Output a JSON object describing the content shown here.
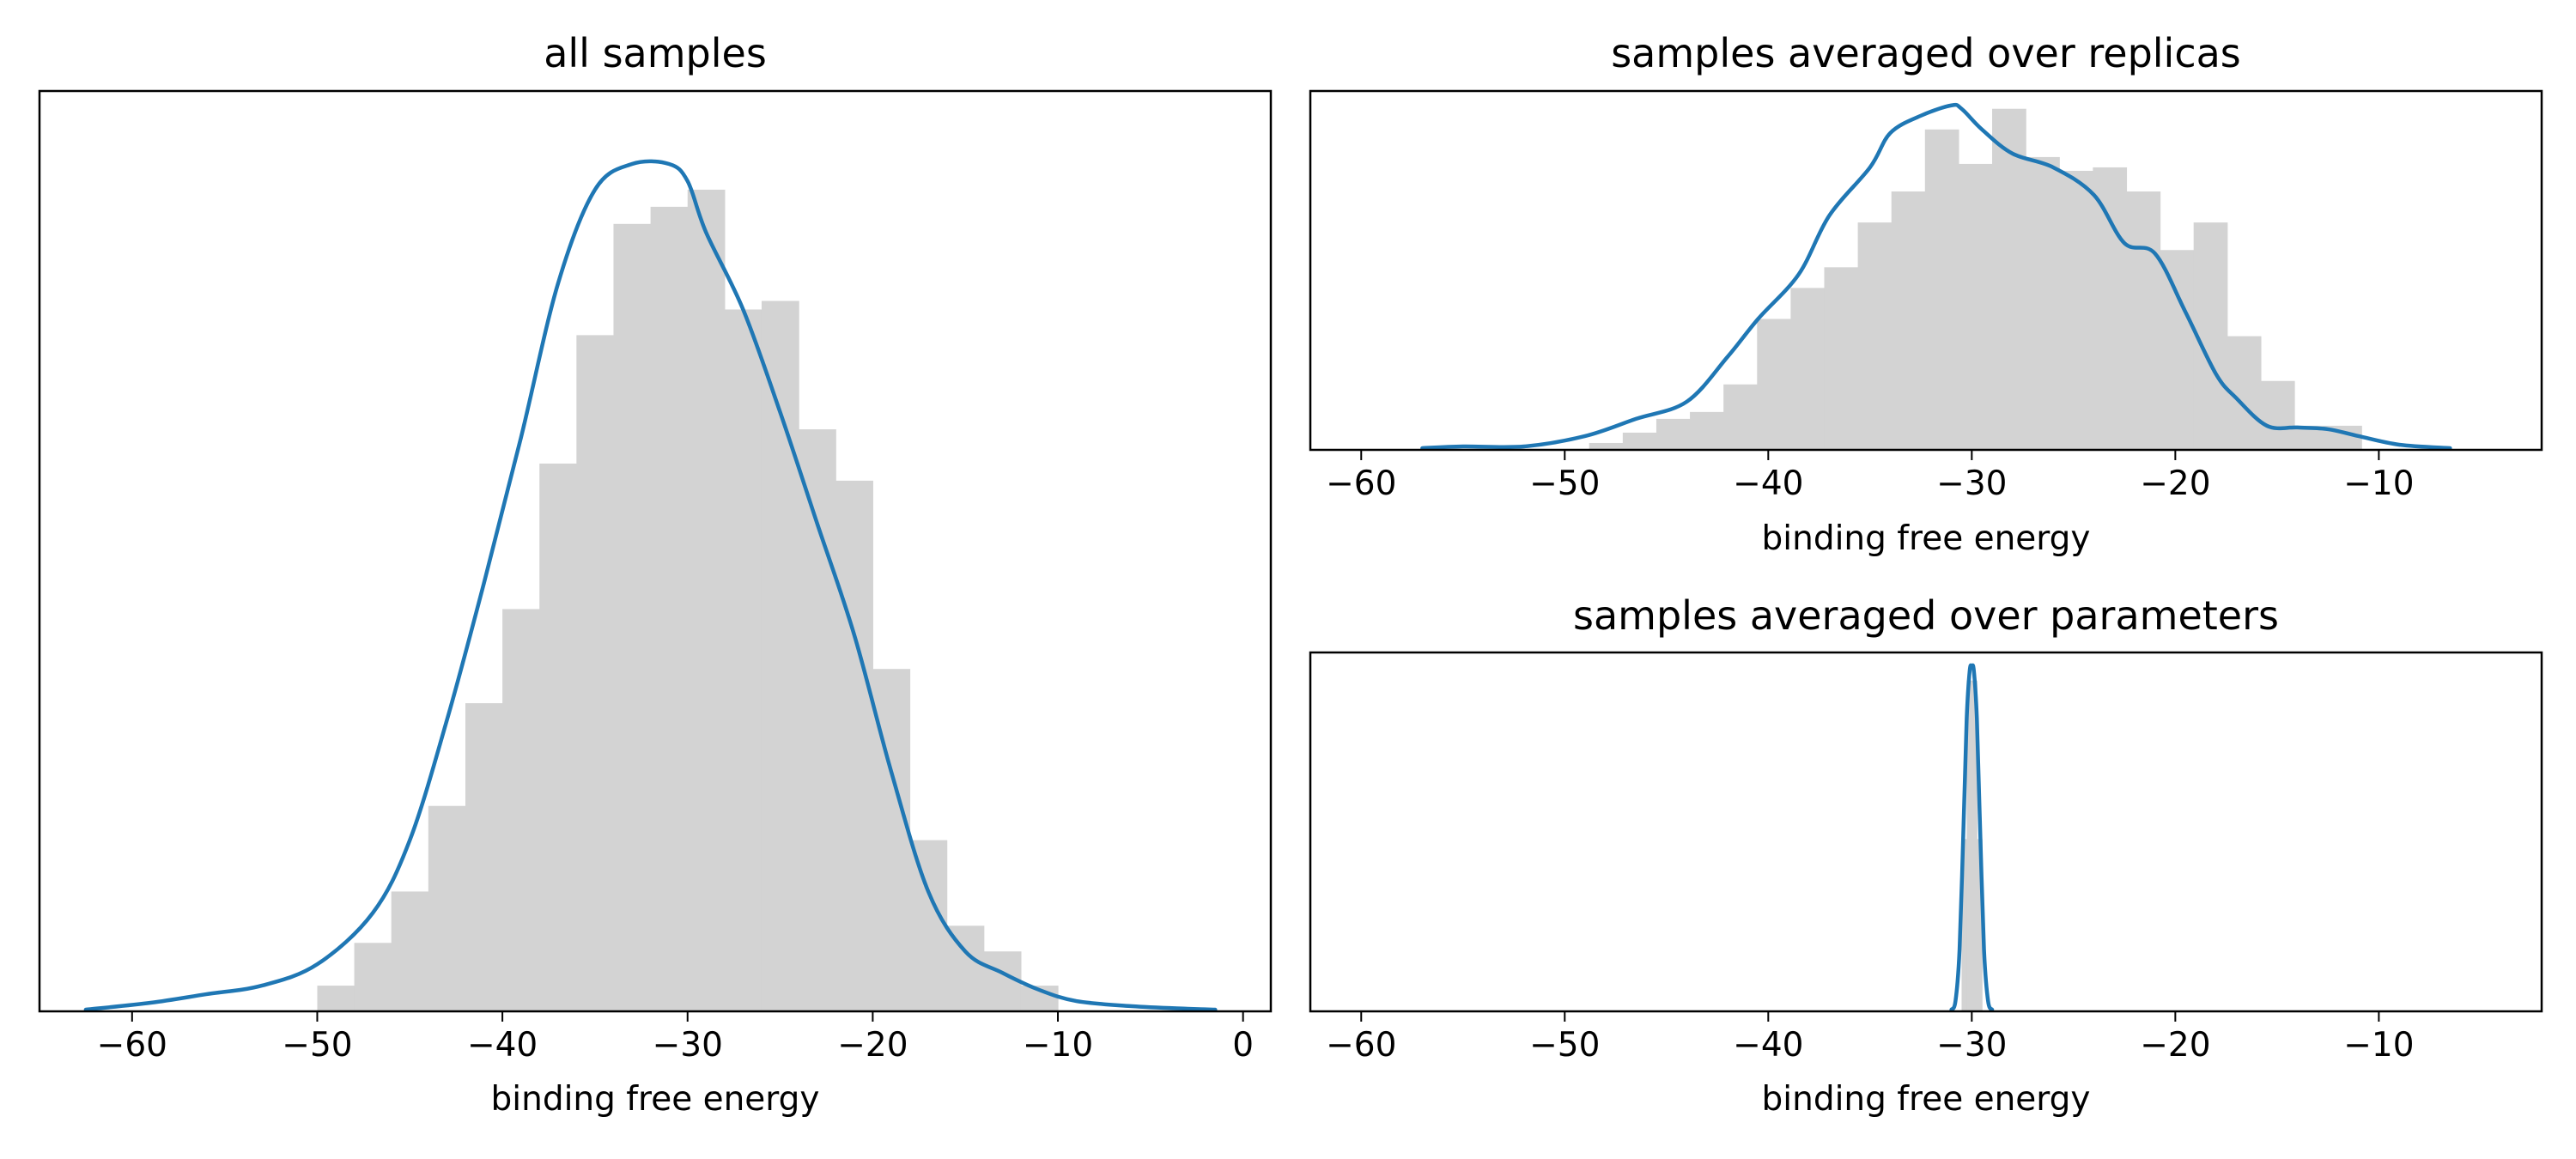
{
  "colors": {
    "hist": "#d3d3d3",
    "kde": "#1f77b4",
    "axis": "#000000"
  },
  "chart_data": [
    {
      "id": "all",
      "type": "histogram+kde",
      "title": "all samples",
      "xlabel": "binding free energy",
      "ylabel": "",
      "xlim": [
        -65,
        1.5
      ],
      "ylim": [
        0,
        1.0
      ],
      "xticks": [
        -60,
        -50,
        -40,
        -30,
        -20,
        -10,
        0
      ],
      "yticks_shown": false,
      "grid": false,
      "histogram": {
        "bin_edges": [
          -50,
          -48,
          -46,
          -44,
          -42,
          -40,
          -38,
          -36,
          -34,
          -32,
          -30,
          -28,
          -26,
          -24,
          -22,
          -20,
          -18,
          -16,
          -14,
          -12,
          -10
        ],
        "heights": [
          0.03,
          0.08,
          0.14,
          0.24,
          0.36,
          0.47,
          0.64,
          0.79,
          0.92,
          0.94,
          0.96,
          0.82,
          0.83,
          0.68,
          0.62,
          0.4,
          0.2,
          0.1,
          0.07,
          0.03
        ]
      },
      "kde": {
        "x": [
          -62.5,
          -59,
          -56,
          -53,
          -50,
          -47,
          -45,
          -43,
          -41,
          -39,
          -37,
          -35,
          -33,
          -31,
          -30,
          -29,
          -27,
          -25,
          -23,
          -21,
          -19,
          -17,
          -15,
          -13,
          -11,
          -9,
          -6,
          -3,
          -1.5
        ],
        "y": [
          0.002,
          0.01,
          0.02,
          0.03,
          0.055,
          0.115,
          0.2,
          0.34,
          0.5,
          0.67,
          0.85,
          0.96,
          0.99,
          0.99,
          0.97,
          0.91,
          0.82,
          0.7,
          0.57,
          0.44,
          0.28,
          0.14,
          0.07,
          0.045,
          0.025,
          0.012,
          0.006,
          0.003,
          0.002
        ]
      }
    },
    {
      "id": "replicas",
      "type": "histogram+kde",
      "title": "samples averaged over replicas",
      "xlabel": "binding free energy",
      "ylabel": "",
      "xlim": [
        -62.5,
        -2
      ],
      "ylim": [
        0,
        1.0
      ],
      "xticks": [
        -60,
        -50,
        -40,
        -30,
        -20,
        -10
      ],
      "yticks_shown": false,
      "grid": false,
      "histogram": {
        "bin_edges": [
          -48.8,
          -47.15,
          -45.5,
          -43.85,
          -42.2,
          -40.55,
          -38.9,
          -37.25,
          -35.6,
          -33.95,
          -32.3,
          -30.65,
          -29.0,
          -27.35,
          -25.7,
          -24.05,
          -22.4,
          -20.75,
          -19.1,
          -17.45,
          -15.8,
          -14.15,
          -12.5,
          -10.85
        ],
        "heights": [
          0.02,
          0.05,
          0.09,
          0.11,
          0.19,
          0.38,
          0.47,
          0.53,
          0.66,
          0.75,
          0.93,
          0.83,
          0.99,
          0.85,
          0.81,
          0.82,
          0.75,
          0.58,
          0.66,
          0.33,
          0.2,
          0.07,
          0.07,
          0.05
        ]
      },
      "kde": {
        "x": [
          -57,
          -55,
          -52,
          -49,
          -46.5,
          -44,
          -42,
          -40.5,
          -38.5,
          -37,
          -35,
          -34,
          -32.5,
          -31,
          -30.5,
          -29.5,
          -28,
          -26,
          -24,
          -22.5,
          -21,
          -19.5,
          -18,
          -17,
          -15.5,
          -14,
          -12.5,
          -11,
          -9,
          -6.5
        ],
        "y": [
          0.005,
          0.01,
          0.01,
          0.04,
          0.09,
          0.14,
          0.27,
          0.38,
          0.51,
          0.68,
          0.82,
          0.92,
          0.97,
          1.0,
          0.99,
          0.93,
          0.86,
          0.82,
          0.74,
          0.6,
          0.57,
          0.4,
          0.22,
          0.15,
          0.07,
          0.065,
          0.06,
          0.04,
          0.015,
          0.005
        ]
      }
    },
    {
      "id": "parameters",
      "type": "histogram+kde",
      "title": "samples averaged over parameters",
      "xlabel": "binding free energy",
      "ylabel": "",
      "xlim": [
        -62.5,
        -2
      ],
      "ylim": [
        0,
        1.0
      ],
      "xticks": [
        -60,
        -50,
        -40,
        -30,
        -20,
        -10
      ],
      "yticks_shown": false,
      "grid": false,
      "histogram": {
        "bin_edges": [
          -30.5,
          -30.25,
          -30.0,
          -29.75,
          -29.5
        ],
        "heights": [
          0.5,
          0.96,
          0.96,
          0.5
        ]
      },
      "kde": {
        "x": [
          -31,
          -30.8,
          -30.6,
          -30.4,
          -30.25,
          -30.1,
          -30,
          -29.9,
          -29.75,
          -29.6,
          -29.4,
          -29.2,
          -29
        ],
        "y": [
          0.005,
          0.03,
          0.18,
          0.55,
          0.85,
          0.99,
          1.0,
          0.99,
          0.85,
          0.55,
          0.18,
          0.03,
          0.005
        ]
      }
    }
  ]
}
